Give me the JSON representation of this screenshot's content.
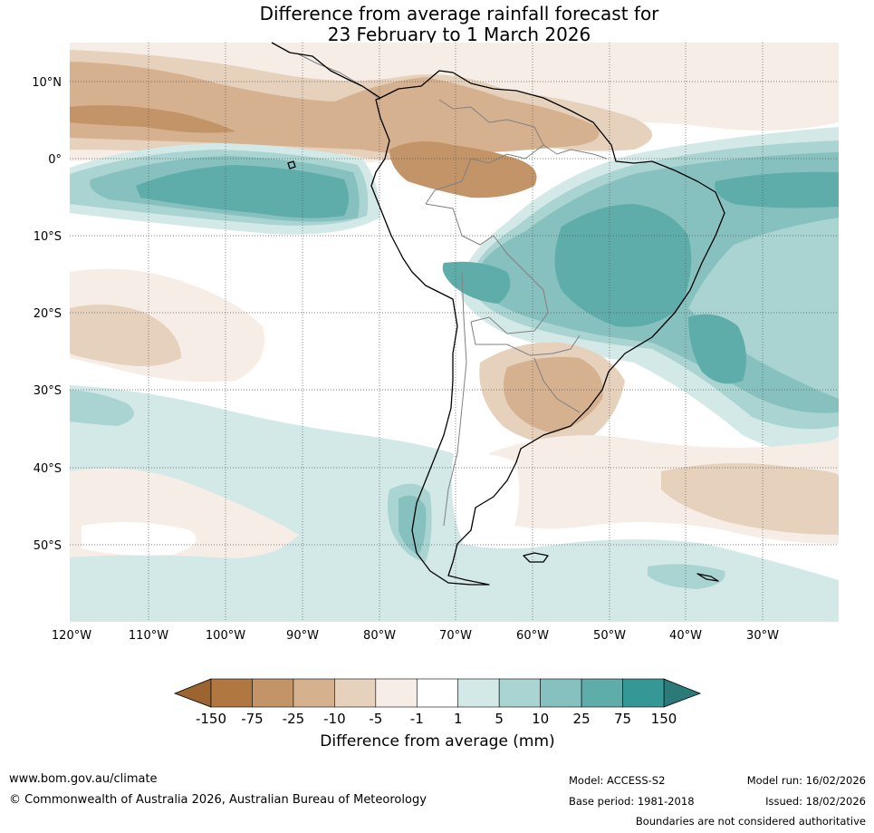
{
  "title_line1": "Difference from average rainfall forecast for",
  "title_line2": "23 February to 1 March 2026",
  "lat_labels": [
    "10°N",
    "0°",
    "10°S",
    "20°S",
    "30°S",
    "40°S",
    "50°S"
  ],
  "lon_labels": [
    "120°W",
    "110°W",
    "100°W",
    "90°W",
    "80°W",
    "70°W",
    "60°W",
    "50°W",
    "40°W",
    "30°W"
  ],
  "colorbar": {
    "title": "Difference from average (mm)",
    "tick_labels": [
      "-150",
      "-75",
      "-25",
      "-10",
      "-5",
      "-1",
      "1",
      "5",
      "10",
      "25",
      "75",
      "150"
    ],
    "extend_low_color": "#9b6431",
    "extend_high_color": "#2b7a78",
    "colors": [
      "#b07840",
      "#c29467",
      "#d5b190",
      "#e6d1bd",
      "#f6ede6",
      "#ffffff",
      "#d3e9e7",
      "#a9d4d2",
      "#86c1bf",
      "#5eadab",
      "#369896"
    ]
  },
  "palette": {
    "dry_strong": "#c29467",
    "dry_mod": "#d5b190",
    "dry_light": "#e6d1bd",
    "dry_faint": "#f6ede6",
    "wet_faint": "#d3e9e7",
    "wet_light": "#a9d4d2",
    "wet_mod": "#86c1bf",
    "wet_strong": "#5eadab",
    "coast": "#000000",
    "border": "#808080"
  },
  "footer": {
    "url": "www.bom.gov.au/climate",
    "copyright": "© Commonwealth of Australia 2026, Australian Bureau of Meteorology",
    "model": "Model: ACCESS-S2",
    "base_period": "Base period: 1981-2018",
    "model_run": "Model run: 16/02/2026",
    "issued": "Issued: 18/02/2026",
    "boundaries": "Boundaries are not considered authoritative"
  }
}
